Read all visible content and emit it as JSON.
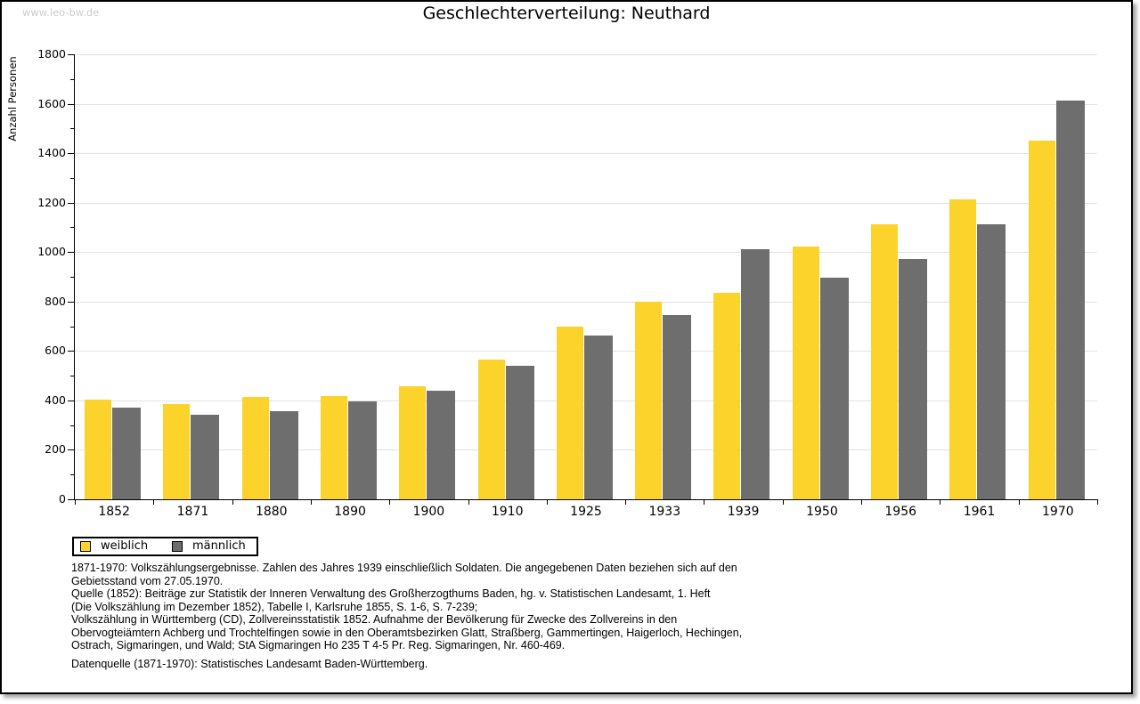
{
  "watermark": "www.leo-bw.de",
  "title": "Geschlechterverteilung: Neuthard",
  "chart_data": {
    "type": "bar",
    "title": "Geschlechterverteilung: Neuthard",
    "categories": [
      "1852",
      "1871",
      "1880",
      "1890",
      "1900",
      "1910",
      "1925",
      "1933",
      "1939",
      "1950",
      "1956",
      "1961",
      "1970"
    ],
    "series": [
      {
        "name": "weiblich",
        "color": "#FCD32B",
        "values": [
          404,
          386,
          414,
          419,
          458,
          565,
          700,
          799,
          836,
          1022,
          1111,
          1215,
          1452
        ]
      },
      {
        "name": "männlich",
        "color": "#6E6E6E",
        "values": [
          371,
          342,
          357,
          396,
          440,
          540,
          662,
          747,
          1010,
          896,
          972,
          1112,
          1612
        ]
      }
    ],
    "xlabel": "",
    "ylabel": "Anzahl Personen",
    "ylim": [
      0,
      1800
    ],
    "ytick_step": 200,
    "ytick_minor_step": 100,
    "grid": true,
    "legend_position": "bottom-left",
    "grid_color": "#e2e2e2"
  },
  "footer": {
    "lines": [
      "1871-1970: Volkszählungsergebnisse. Zahlen des Jahres 1939 einschließlich Soldaten. Die angegebenen Daten beziehen sich auf den",
      "Gebietsstand vom 27.05.1970.",
      "Quelle (1852): Beiträge zur Statistik der Inneren Verwaltung des Großherzogthums Baden, hg. v. Statistischen Landesamt, 1. Heft",
      "(Die Volkszählung im Dezember 1852), Tabelle I, Karlsruhe 1855, S. 1-6, S. 7-239;",
      "Volkszählung in Württemberg (CD), Zollvereinsstatistik 1852. Aufnahme der Bevölkerung für Zwecke des Zollvereins in den",
      "Obervogteiämtern Achberg und Trochtelfingen sowie in den Oberamtsbezirken Glatt, Straßberg, Gammertingen, Haigerloch, Hechingen,",
      "Ostrach, Sigmaringen, und Wald; StA Sigmaringen Ho 235 T 4-5 Pr. Reg. Sigmaringen, Nr. 460-469."
    ],
    "datasource": "Datenquelle (1871-1970): Statistisches Landesamt Baden-Württemberg."
  }
}
